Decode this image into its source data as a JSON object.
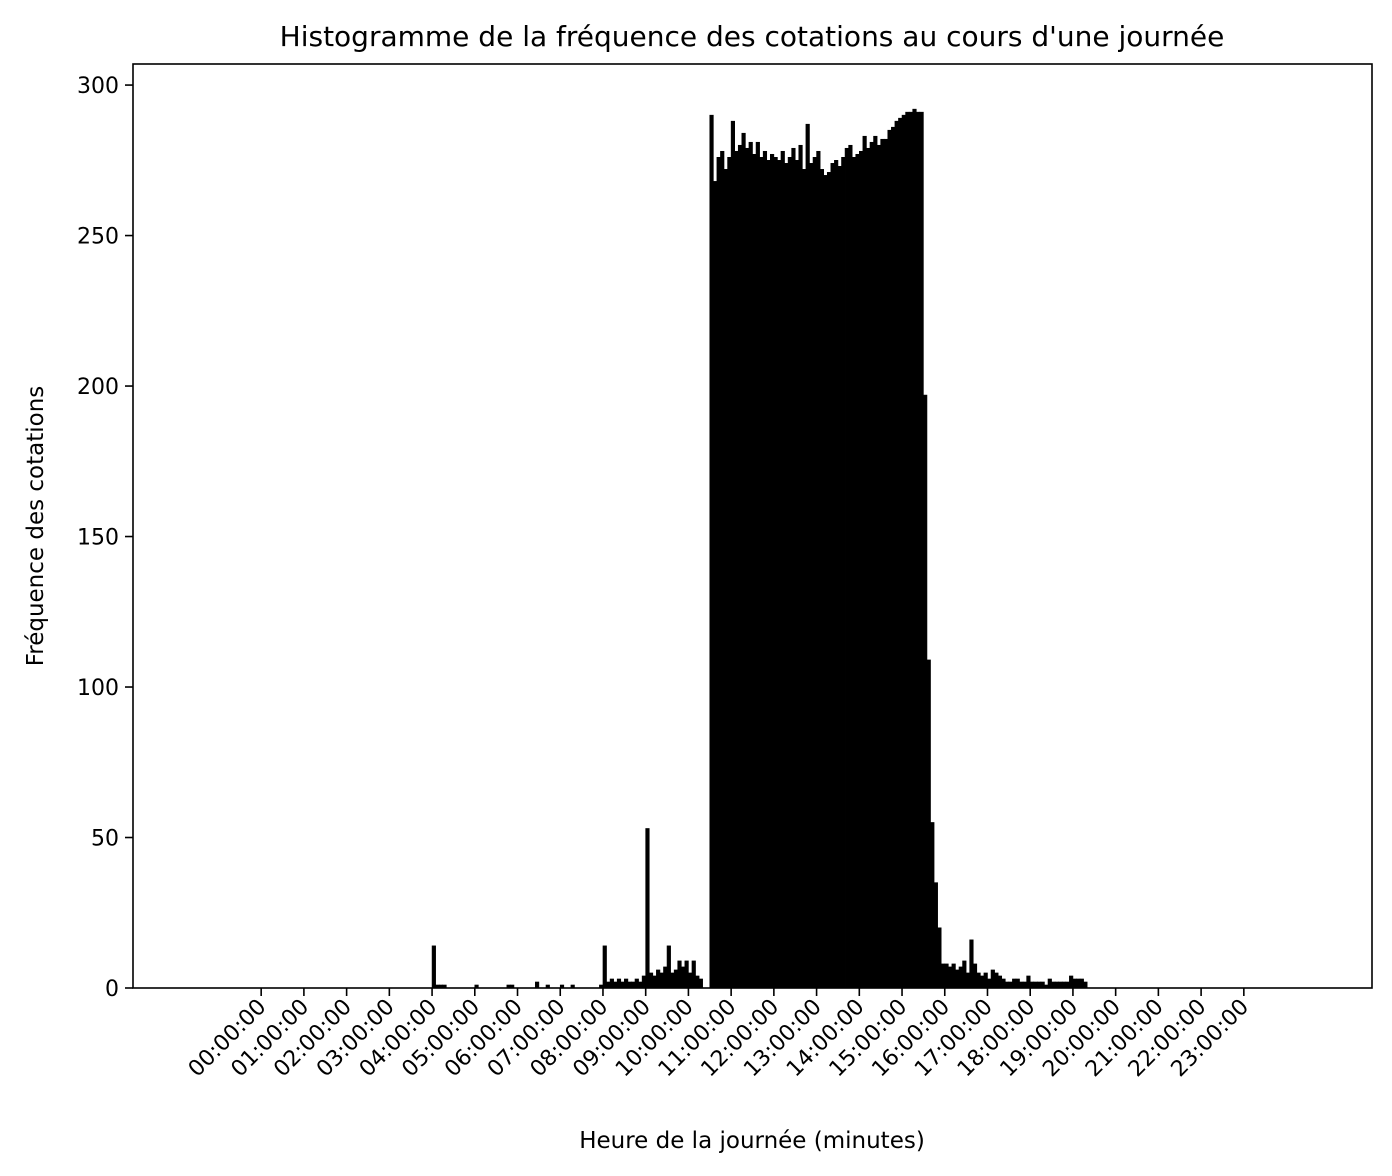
{
  "chart_data": {
    "type": "bar",
    "title": "Histogramme de la fréquence des cotations au cours d'une journée",
    "xlabel": "Heure de la journée (minutes)",
    "ylabel": "Fréquence des cotations",
    "x_unit": "minutes",
    "xlim": [
      -180,
      1560
    ],
    "ylim": [
      0,
      307
    ],
    "grid": false,
    "bar_color": "#000000",
    "x_ticks": [
      {
        "value": 0,
        "label": "00:00:00"
      },
      {
        "value": 60,
        "label": "01:00:00"
      },
      {
        "value": 120,
        "label": "02:00:00"
      },
      {
        "value": 180,
        "label": "03:00:00"
      },
      {
        "value": 240,
        "label": "04:00:00"
      },
      {
        "value": 300,
        "label": "05:00:00"
      },
      {
        "value": 360,
        "label": "06:00:00"
      },
      {
        "value": 420,
        "label": "07:00:00"
      },
      {
        "value": 480,
        "label": "08:00:00"
      },
      {
        "value": 540,
        "label": "09:00:00"
      },
      {
        "value": 600,
        "label": "10:00:00"
      },
      {
        "value": 660,
        "label": "11:00:00"
      },
      {
        "value": 720,
        "label": "12:00:00"
      },
      {
        "value": 780,
        "label": "13:00:00"
      },
      {
        "value": 840,
        "label": "14:00:00"
      },
      {
        "value": 900,
        "label": "15:00:00"
      },
      {
        "value": 960,
        "label": "16:00:00"
      },
      {
        "value": 1020,
        "label": "17:00:00"
      },
      {
        "value": 1080,
        "label": "18:00:00"
      },
      {
        "value": 1140,
        "label": "19:00:00"
      },
      {
        "value": 1200,
        "label": "20:00:00"
      },
      {
        "value": 1260,
        "label": "21:00:00"
      },
      {
        "value": 1320,
        "label": "22:00:00"
      },
      {
        "value": 1380,
        "label": "23:00:00"
      }
    ],
    "y_ticks": [
      0,
      50,
      100,
      150,
      200,
      250,
      300
    ],
    "bin_width_minutes": 5,
    "bins": [
      {
        "x": 240,
        "y": 14
      },
      {
        "x": 245,
        "y": 1
      },
      {
        "x": 250,
        "y": 1
      },
      {
        "x": 255,
        "y": 1
      },
      {
        "x": 300,
        "y": 1
      },
      {
        "x": 345,
        "y": 1
      },
      {
        "x": 350,
        "y": 1
      },
      {
        "x": 385,
        "y": 2
      },
      {
        "x": 400,
        "y": 1
      },
      {
        "x": 420,
        "y": 1
      },
      {
        "x": 435,
        "y": 1
      },
      {
        "x": 475,
        "y": 1
      },
      {
        "x": 480,
        "y": 14
      },
      {
        "x": 485,
        "y": 2
      },
      {
        "x": 490,
        "y": 3
      },
      {
        "x": 495,
        "y": 2
      },
      {
        "x": 500,
        "y": 3
      },
      {
        "x": 505,
        "y": 2
      },
      {
        "x": 510,
        "y": 3
      },
      {
        "x": 515,
        "y": 2
      },
      {
        "x": 520,
        "y": 2
      },
      {
        "x": 525,
        "y": 3
      },
      {
        "x": 530,
        "y": 2
      },
      {
        "x": 535,
        "y": 4
      },
      {
        "x": 540,
        "y": 53
      },
      {
        "x": 545,
        "y": 5
      },
      {
        "x": 550,
        "y": 4
      },
      {
        "x": 555,
        "y": 6
      },
      {
        "x": 560,
        "y": 5
      },
      {
        "x": 565,
        "y": 7
      },
      {
        "x": 570,
        "y": 14
      },
      {
        "x": 575,
        "y": 5
      },
      {
        "x": 580,
        "y": 6
      },
      {
        "x": 585,
        "y": 9
      },
      {
        "x": 590,
        "y": 7
      },
      {
        "x": 595,
        "y": 9
      },
      {
        "x": 600,
        "y": 5
      },
      {
        "x": 605,
        "y": 9
      },
      {
        "x": 610,
        "y": 4
      },
      {
        "x": 615,
        "y": 3
      },
      {
        "x": 630,
        "y": 290
      },
      {
        "x": 635,
        "y": 268
      },
      {
        "x": 640,
        "y": 276
      },
      {
        "x": 645,
        "y": 278
      },
      {
        "x": 650,
        "y": 272
      },
      {
        "x": 655,
        "y": 276
      },
      {
        "x": 660,
        "y": 288
      },
      {
        "x": 665,
        "y": 278
      },
      {
        "x": 670,
        "y": 280
      },
      {
        "x": 675,
        "y": 284
      },
      {
        "x": 680,
        "y": 279
      },
      {
        "x": 685,
        "y": 281
      },
      {
        "x": 690,
        "y": 277
      },
      {
        "x": 695,
        "y": 281
      },
      {
        "x": 700,
        "y": 276
      },
      {
        "x": 705,
        "y": 278
      },
      {
        "x": 710,
        "y": 275
      },
      {
        "x": 715,
        "y": 277
      },
      {
        "x": 720,
        "y": 276
      },
      {
        "x": 725,
        "y": 275
      },
      {
        "x": 730,
        "y": 278
      },
      {
        "x": 735,
        "y": 274
      },
      {
        "x": 740,
        "y": 276
      },
      {
        "x": 745,
        "y": 279
      },
      {
        "x": 750,
        "y": 275
      },
      {
        "x": 755,
        "y": 280
      },
      {
        "x": 760,
        "y": 272
      },
      {
        "x": 765,
        "y": 287
      },
      {
        "x": 770,
        "y": 274
      },
      {
        "x": 775,
        "y": 276
      },
      {
        "x": 780,
        "y": 278
      },
      {
        "x": 785,
        "y": 272
      },
      {
        "x": 790,
        "y": 270
      },
      {
        "x": 795,
        "y": 271
      },
      {
        "x": 800,
        "y": 274
      },
      {
        "x": 805,
        "y": 275
      },
      {
        "x": 810,
        "y": 273
      },
      {
        "x": 815,
        "y": 276
      },
      {
        "x": 820,
        "y": 279
      },
      {
        "x": 825,
        "y": 280
      },
      {
        "x": 830,
        "y": 276
      },
      {
        "x": 835,
        "y": 277
      },
      {
        "x": 840,
        "y": 278
      },
      {
        "x": 845,
        "y": 283
      },
      {
        "x": 850,
        "y": 279
      },
      {
        "x": 855,
        "y": 281
      },
      {
        "x": 860,
        "y": 283
      },
      {
        "x": 865,
        "y": 280
      },
      {
        "x": 870,
        "y": 282
      },
      {
        "x": 875,
        "y": 282
      },
      {
        "x": 880,
        "y": 285
      },
      {
        "x": 885,
        "y": 286
      },
      {
        "x": 890,
        "y": 288
      },
      {
        "x": 895,
        "y": 289
      },
      {
        "x": 900,
        "y": 290
      },
      {
        "x": 905,
        "y": 291
      },
      {
        "x": 910,
        "y": 291
      },
      {
        "x": 915,
        "y": 292
      },
      {
        "x": 920,
        "y": 291
      },
      {
        "x": 925,
        "y": 291
      },
      {
        "x": 930,
        "y": 197
      },
      {
        "x": 935,
        "y": 109
      },
      {
        "x": 940,
        "y": 55
      },
      {
        "x": 945,
        "y": 35
      },
      {
        "x": 950,
        "y": 20
      },
      {
        "x": 955,
        "y": 8
      },
      {
        "x": 960,
        "y": 8
      },
      {
        "x": 965,
        "y": 7
      },
      {
        "x": 970,
        "y": 8
      },
      {
        "x": 975,
        "y": 6
      },
      {
        "x": 980,
        "y": 7
      },
      {
        "x": 985,
        "y": 9
      },
      {
        "x": 990,
        "y": 5
      },
      {
        "x": 995,
        "y": 16
      },
      {
        "x": 1000,
        "y": 8
      },
      {
        "x": 1005,
        "y": 5
      },
      {
        "x": 1010,
        "y": 4
      },
      {
        "x": 1015,
        "y": 5
      },
      {
        "x": 1020,
        "y": 3
      },
      {
        "x": 1025,
        "y": 6
      },
      {
        "x": 1030,
        "y": 5
      },
      {
        "x": 1035,
        "y": 4
      },
      {
        "x": 1040,
        "y": 3
      },
      {
        "x": 1045,
        "y": 2
      },
      {
        "x": 1050,
        "y": 2
      },
      {
        "x": 1055,
        "y": 3
      },
      {
        "x": 1060,
        "y": 3
      },
      {
        "x": 1065,
        "y": 2
      },
      {
        "x": 1070,
        "y": 2
      },
      {
        "x": 1075,
        "y": 4
      },
      {
        "x": 1080,
        "y": 2
      },
      {
        "x": 1085,
        "y": 2
      },
      {
        "x": 1090,
        "y": 2
      },
      {
        "x": 1095,
        "y": 2
      },
      {
        "x": 1100,
        "y": 1
      },
      {
        "x": 1105,
        "y": 3
      },
      {
        "x": 1110,
        "y": 2
      },
      {
        "x": 1115,
        "y": 2
      },
      {
        "x": 1120,
        "y": 2
      },
      {
        "x": 1125,
        "y": 2
      },
      {
        "x": 1130,
        "y": 2
      },
      {
        "x": 1135,
        "y": 4
      },
      {
        "x": 1140,
        "y": 3
      },
      {
        "x": 1145,
        "y": 3
      },
      {
        "x": 1150,
        "y": 3
      },
      {
        "x": 1155,
        "y": 2
      }
    ]
  }
}
